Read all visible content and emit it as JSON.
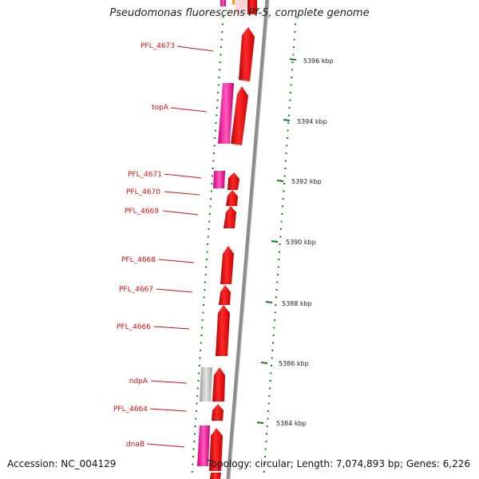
{
  "title": "Pseudomonas fluorescens Pf-5, complete genome",
  "accession": "Accession: NC_004129",
  "topology": "Topology: circular; Length: 7,074,893 bp; Genes: 6,226",
  "colors": {
    "forward_gene": "#ee0000",
    "gene_highlight": "#ff66cc",
    "rna_gene": "#c0c0c0",
    "label": "#cc1111",
    "gc_tick": "#1a7a1a",
    "backbone": "#8c8c8c"
  },
  "scale_ticks": [
    {
      "label": "5396 kbp"
    },
    {
      "label": "5394 kbp"
    },
    {
      "label": "5392 kbp"
    },
    {
      "label": "5390 kbp"
    },
    {
      "label": "5388 kbp"
    },
    {
      "label": "5386 kbp"
    },
    {
      "label": "5384 kbp"
    }
  ],
  "genes": [
    {
      "label": "PFL_4673",
      "track": "forward"
    },
    {
      "label": "topA",
      "track": "forward+highlight"
    },
    {
      "label": "PFL_4671",
      "track": "forward+highlight"
    },
    {
      "label": "PFL_4670",
      "track": "forward"
    },
    {
      "label": "PFL_4669",
      "track": "forward"
    },
    {
      "label": "PFL_4668",
      "track": "forward"
    },
    {
      "label": "PFL_4667",
      "track": "forward"
    },
    {
      "label": "PFL_4666",
      "track": "forward"
    },
    {
      "label": "ndpA",
      "track": "forward+rna"
    },
    {
      "label": "PFL_4664",
      "track": "forward"
    },
    {
      "label": "dnaB",
      "track": "forward+highlight"
    }
  ]
}
